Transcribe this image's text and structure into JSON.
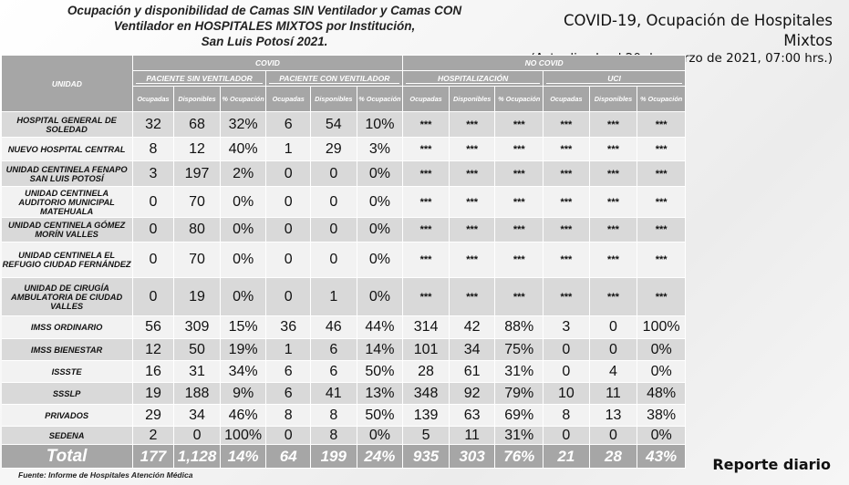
{
  "title_lines": [
    "Ocupación y disponibilidad de Camas SIN Ventilador y Camas CON",
    "Ventilador en HOSPITALES MIXTOS por Institución,",
    "San Luis Potosí 2021."
  ],
  "header": {
    "main": "COVID-19, Ocupación de Hospitales Mixtos",
    "updated": "(Actualizada al 20 de marzo de 2021, 07:00 hrs.)"
  },
  "table": {
    "unidad_label": "UNIDAD",
    "covid_label": "COVID",
    "no_covid_label": "NO COVID",
    "groups": [
      "PACIENTE SIN VENTILADOR",
      "PACIENTE CON VENTILADOR",
      "HOSPITALIZACIÓN",
      "UCI"
    ],
    "sub": [
      "Ocupadas",
      "Disponibles",
      "% Ocupación"
    ],
    "rows": [
      {
        "name": "HOSPITAL GENERAL DE SOLEDAD",
        "vals": [
          "32",
          "68",
          "32%",
          "6",
          "54",
          "10%",
          "***",
          "***",
          "***",
          "***",
          "***",
          "***"
        ]
      },
      {
        "name": "NUEVO HOSPITAL CENTRAL",
        "vals": [
          "8",
          "12",
          "40%",
          "1",
          "29",
          "3%",
          "***",
          "***",
          "***",
          "***",
          "***",
          "***"
        ]
      },
      {
        "name": "UNIDAD CENTINELA FENAPO SAN LUIS POTOSÍ",
        "vals": [
          "3",
          "197",
          "2%",
          "0",
          "0",
          "0%",
          "***",
          "***",
          "***",
          "***",
          "***",
          "***"
        ]
      },
      {
        "name": "UNIDAD CENTINELA AUDITORIO MUNICIPAL MATEHUALA",
        "vals": [
          "0",
          "70",
          "0%",
          "0",
          "0",
          "0%",
          "***",
          "***",
          "***",
          "***",
          "***",
          "***"
        ]
      },
      {
        "name": "UNIDAD CENTINELA GÓMEZ MORÍN VALLES",
        "vals": [
          "0",
          "80",
          "0%",
          "0",
          "0",
          "0%",
          "***",
          "***",
          "***",
          "***",
          "***",
          "***"
        ]
      },
      {
        "name": "UNIDAD CENTINELA EL REFUGIO CIUDAD FERNÁNDEZ",
        "vals": [
          "0",
          "70",
          "0%",
          "0",
          "0",
          "0%",
          "***",
          "***",
          "***",
          "***",
          "***",
          "***"
        ]
      },
      {
        "name": "UNIDAD DE CIRUGÍA AMBULATORIA DE CIUDAD VALLES",
        "vals": [
          "0",
          "19",
          "0%",
          "0",
          "1",
          "0%",
          "***",
          "***",
          "***",
          "***",
          "***",
          "***"
        ]
      },
      {
        "name": "IMSS ORDINARIO",
        "vals": [
          "56",
          "309",
          "15%",
          "36",
          "46",
          "44%",
          "314",
          "42",
          "88%",
          "3",
          "0",
          "100%"
        ]
      },
      {
        "name": "IMSS BIENESTAR",
        "vals": [
          "12",
          "50",
          "19%",
          "1",
          "6",
          "14%",
          "101",
          "34",
          "75%",
          "0",
          "0",
          "0%"
        ]
      },
      {
        "name": "ISSSTE",
        "vals": [
          "16",
          "31",
          "34%",
          "6",
          "6",
          "50%",
          "28",
          "61",
          "31%",
          "0",
          "4",
          "0%"
        ]
      },
      {
        "name": "SSSLP",
        "vals": [
          "19",
          "188",
          "9%",
          "6",
          "41",
          "13%",
          "348",
          "92",
          "79%",
          "10",
          "11",
          "48%"
        ]
      },
      {
        "name": "PRIVADOS",
        "vals": [
          "29",
          "34",
          "46%",
          "8",
          "8",
          "50%",
          "139",
          "63",
          "69%",
          "8",
          "13",
          "38%"
        ]
      },
      {
        "name": "SEDENA",
        "vals": [
          "2",
          "0",
          "100%",
          "0",
          "8",
          "0%",
          "5",
          "11",
          "31%",
          "0",
          "0",
          "0%"
        ]
      }
    ],
    "total": {
      "name": "Total",
      "vals": [
        "177",
        "1,128",
        "14%",
        "64",
        "199",
        "24%",
        "935",
        "303",
        "76%",
        "21",
        "28",
        "43%"
      ]
    }
  },
  "source": "Fuente: Informe de Hospitales Atención Médica",
  "report_label": "Reporte diario"
}
